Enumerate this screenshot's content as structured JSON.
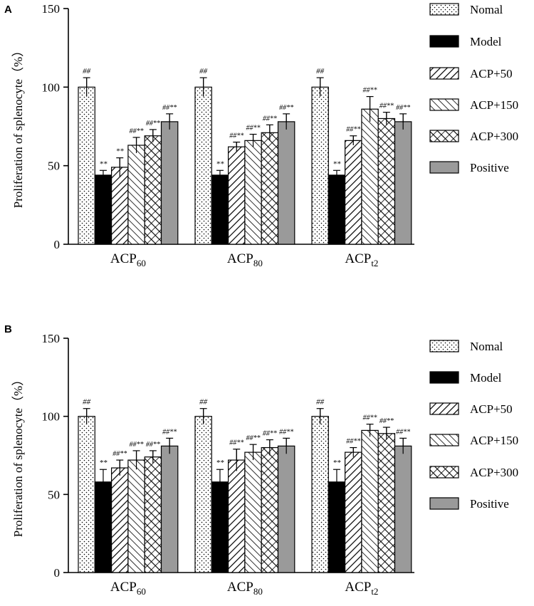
{
  "chart_data": [
    {
      "panel": "A",
      "type": "bar",
      "ylabel": "Proliferation of splenocyte（%）",
      "ylim": [
        0,
        150
      ],
      "yticks": [
        0,
        50,
        100,
        150
      ],
      "groups": [
        {
          "base": "ACP",
          "sub": "60"
        },
        {
          "base": "ACP",
          "sub": "80"
        },
        {
          "base": "ACP",
          "sub": "t2"
        }
      ],
      "series": [
        {
          "name": "Nomal",
          "pattern": "dots",
          "values": [
            100,
            100,
            100
          ],
          "errors": [
            6,
            6,
            6
          ],
          "labels": [
            "##",
            "##",
            "##"
          ]
        },
        {
          "name": "Model",
          "pattern": "black",
          "values": [
            44,
            44,
            44
          ],
          "errors": [
            3,
            3,
            3
          ],
          "labels": [
            "**",
            "**",
            "**"
          ]
        },
        {
          "name": "ACP+50",
          "pattern": "backslash",
          "values": [
            49,
            62,
            66
          ],
          "errors": [
            6,
            3,
            3
          ],
          "labels": [
            "**",
            "##**",
            "##**"
          ]
        },
        {
          "name": "ACP+150",
          "pattern": "slash",
          "values": [
            63,
            66,
            86
          ],
          "errors": [
            5,
            4,
            8
          ],
          "labels": [
            "##**",
            "##**",
            "##**"
          ]
        },
        {
          "name": "ACP+300",
          "pattern": "cross",
          "values": [
            69,
            71,
            80
          ],
          "errors": [
            4,
            5,
            4
          ],
          "labels": [
            "##**",
            "##**",
            "##**"
          ]
        },
        {
          "name": "Positive",
          "pattern": "gray",
          "values": [
            78,
            78,
            78
          ],
          "errors": [
            5,
            5,
            5
          ],
          "labels": [
            "##**",
            "##**",
            "##**"
          ]
        }
      ]
    },
    {
      "panel": "B",
      "type": "bar",
      "ylabel": "Proliferation of splenocyte（%）",
      "ylim": [
        0,
        150
      ],
      "yticks": [
        0,
        50,
        100,
        150
      ],
      "groups": [
        {
          "base": "ACP",
          "sub": "60"
        },
        {
          "base": "ACP",
          "sub": "80"
        },
        {
          "base": "ACP",
          "sub": "t2"
        }
      ],
      "series": [
        {
          "name": "Nomal",
          "pattern": "dots",
          "values": [
            100,
            100,
            100
          ],
          "errors": [
            5,
            5,
            5
          ],
          "labels": [
            "##",
            "##",
            "##"
          ]
        },
        {
          "name": "Model",
          "pattern": "black",
          "values": [
            58,
            58,
            58
          ],
          "errors": [
            8,
            8,
            8
          ],
          "labels": [
            "**",
            "**",
            "**"
          ]
        },
        {
          "name": "ACP+50",
          "pattern": "backslash",
          "values": [
            67,
            72,
            77
          ],
          "errors": [
            5,
            7,
            3
          ],
          "labels": [
            "##**",
            "##**",
            "##**"
          ]
        },
        {
          "name": "ACP+150",
          "pattern": "slash",
          "values": [
            72,
            77,
            91
          ],
          "errors": [
            6,
            5,
            4
          ],
          "labels": [
            "##**",
            "##**",
            "##**"
          ]
        },
        {
          "name": "ACP+300",
          "pattern": "cross",
          "values": [
            74,
            80,
            89
          ],
          "errors": [
            4,
            5,
            4
          ],
          "labels": [
            "##**",
            "##**",
            "##**"
          ]
        },
        {
          "name": "Positive",
          "pattern": "gray",
          "values": [
            81,
            81,
            81
          ],
          "errors": [
            5,
            5,
            5
          ],
          "labels": [
            "##**",
            "##**",
            "##**"
          ]
        }
      ]
    }
  ]
}
